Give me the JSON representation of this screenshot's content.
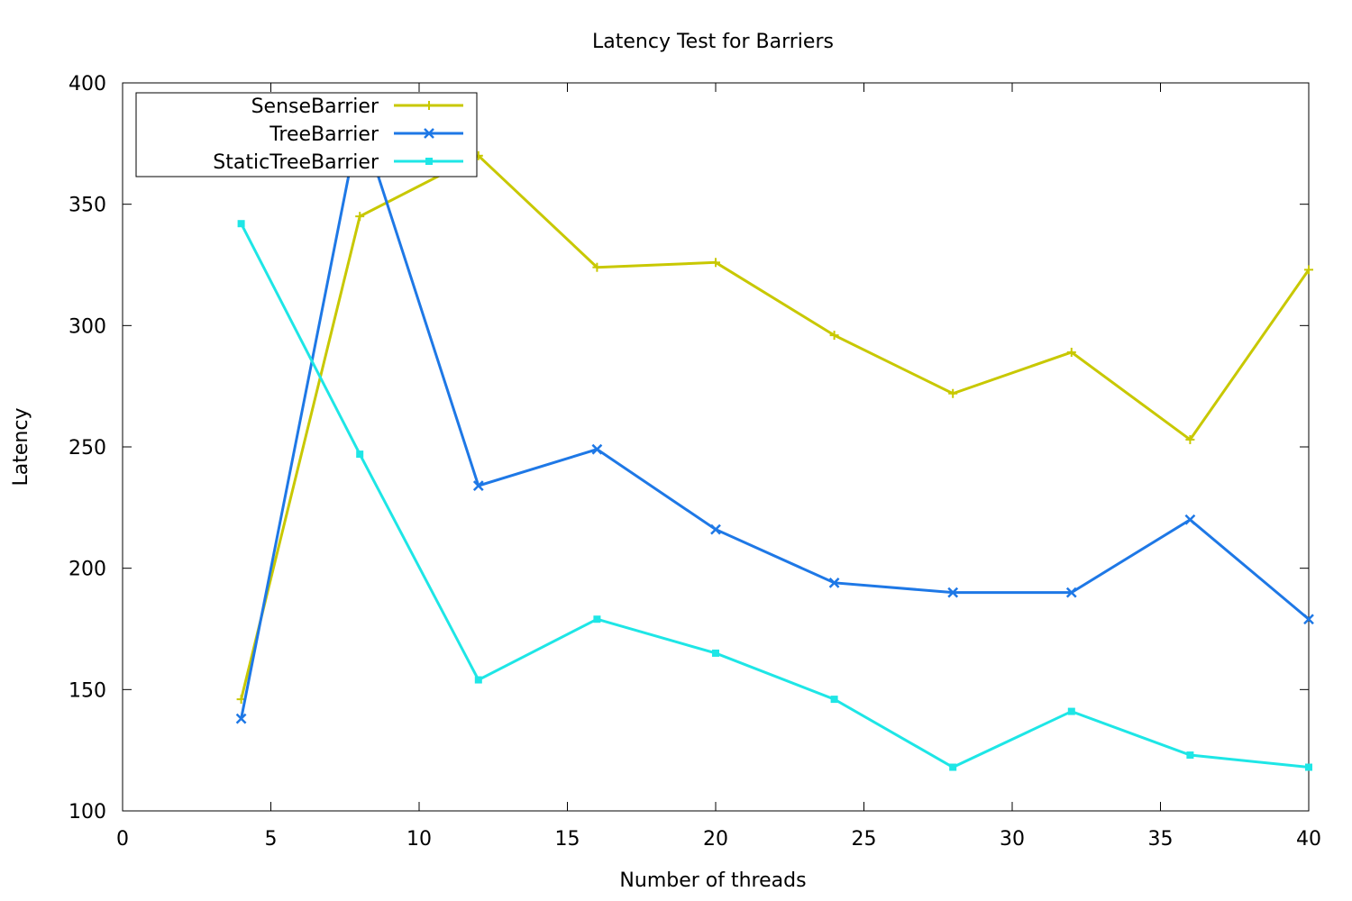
{
  "chart_data": {
    "type": "line",
    "title": "Latency Test for Barriers",
    "xlabel": "Number of threads",
    "ylabel": "Latency",
    "xlim": [
      0,
      40
    ],
    "ylim": [
      100,
      400
    ],
    "xticks": [
      0,
      5,
      10,
      15,
      20,
      25,
      30,
      35,
      40
    ],
    "yticks": [
      100,
      150,
      200,
      250,
      300,
      350,
      400
    ],
    "grid": false,
    "legend_position": "top-left",
    "x": [
      4,
      8,
      12,
      16,
      20,
      24,
      28,
      32,
      36,
      40
    ],
    "series": [
      {
        "name": "SenseBarrier",
        "color": "#c8c800",
        "marker": "plus",
        "values": [
          146,
          345,
          370,
          324,
          326,
          296,
          272,
          289,
          253,
          323
        ]
      },
      {
        "name": "TreeBarrier",
        "color": "#1e78e6",
        "marker": "cross",
        "values": [
          138,
          385,
          234,
          249,
          216,
          194,
          190,
          190,
          220,
          179
        ]
      },
      {
        "name": "StaticTreeBarrier",
        "color": "#1ee6e6",
        "marker": "square",
        "values": [
          342,
          247,
          154,
          179,
          165,
          146,
          118,
          141,
          123,
          118
        ]
      }
    ]
  }
}
